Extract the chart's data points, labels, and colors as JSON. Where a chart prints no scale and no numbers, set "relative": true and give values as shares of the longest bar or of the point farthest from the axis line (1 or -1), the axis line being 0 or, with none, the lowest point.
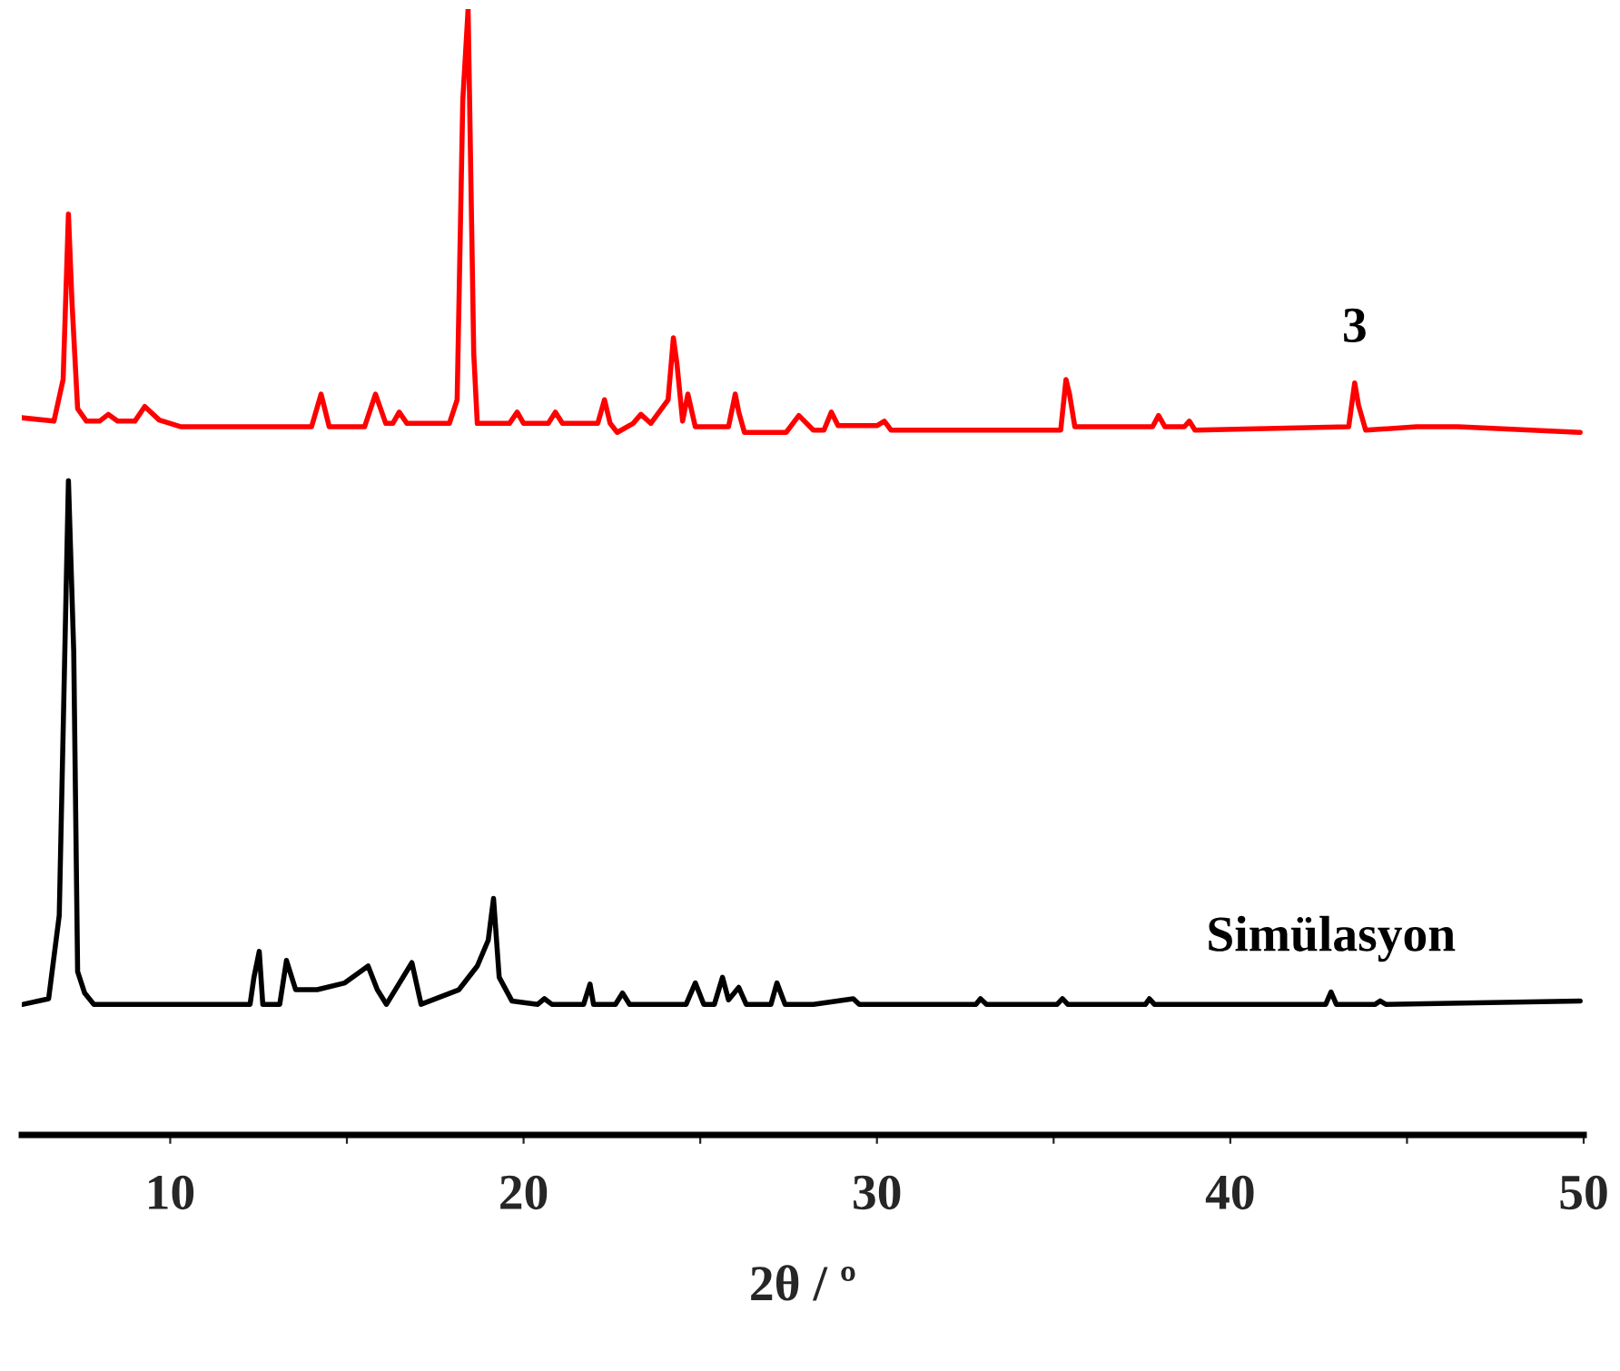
{
  "chart_data": {
    "type": "line",
    "relative": true,
    "xlabel": "2θ / º",
    "xlim": [
      5.8,
      50
    ],
    "xticks": [
      10,
      {
        "value": 15,
        "label": null
      },
      20,
      {
        "value": 25,
        "label": null
      },
      30,
      {
        "value": 35,
        "label": null
      },
      40,
      {
        "value": 45,
        "label": null
      },
      50
    ],
    "tick_labels": "x",
    "grid": false,
    "legend": false,
    "marker": "none",
    "line_style": "solid",
    "series": [
      {
        "name": "3",
        "color": "#ff0000",
        "x": [
          5.8,
          6.71,
          6.97,
          7.12,
          7.22,
          7.38,
          7.63,
          8.0,
          8.25,
          8.51,
          9.0,
          9.28,
          9.69,
          10.31,
          14.0,
          14.27,
          14.5,
          15.5,
          15.81,
          16.1,
          16.3,
          16.48,
          16.7,
          17.9,
          18.12,
          18.28,
          18.43,
          18.59,
          18.69,
          19.6,
          19.82,
          20.0,
          20.7,
          20.9,
          21.1,
          22.1,
          22.29,
          22.45,
          22.65,
          23.1,
          23.32,
          23.6,
          24.09,
          24.24,
          24.34,
          24.5,
          24.65,
          24.86,
          25.8,
          25.99,
          26.09,
          26.25,
          27.43,
          27.79,
          28.2,
          28.5,
          28.71,
          28.9,
          30.0,
          30.21,
          30.4,
          35.2,
          35.35,
          35.45,
          35.6,
          37.8,
          37.97,
          38.15,
          38.7,
          38.84,
          39.0,
          43.35,
          43.52,
          43.63,
          43.83,
          45.27,
          46.45,
          49.9
        ],
        "values": [
          0.637,
          0.634,
          0.671,
          0.818,
          0.74,
          0.645,
          0.634,
          0.634,
          0.64,
          0.634,
          0.634,
          0.647,
          0.635,
          0.629,
          0.629,
          0.658,
          0.629,
          0.629,
          0.658,
          0.632,
          0.632,
          0.642,
          0.632,
          0.632,
          0.653,
          0.919,
          1.0,
          0.694,
          0.632,
          0.632,
          0.642,
          0.632,
          0.632,
          0.642,
          0.632,
          0.632,
          0.653,
          0.632,
          0.624,
          0.632,
          0.64,
          0.632,
          0.653,
          0.708,
          0.685,
          0.634,
          0.658,
          0.629,
          0.629,
          0.658,
          0.642,
          0.624,
          0.624,
          0.639,
          0.626,
          0.626,
          0.642,
          0.63,
          0.63,
          0.634,
          0.626,
          0.626,
          0.671,
          0.658,
          0.629,
          0.629,
          0.639,
          0.629,
          0.629,
          0.634,
          0.626,
          0.629,
          0.668,
          0.648,
          0.626,
          0.629,
          0.629,
          0.624
        ]
      },
      {
        "name": "Simülasyon",
        "color": "#000000",
        "x": [
          5.84,
          6.56,
          6.86,
          7.12,
          7.27,
          7.38,
          7.58,
          7.84,
          12.26,
          12.37,
          12.52,
          12.62,
          13.1,
          13.29,
          13.55,
          14.16,
          14.94,
          15.6,
          15.86,
          16.12,
          16.84,
          17.1,
          18.17,
          18.69,
          19.0,
          19.15,
          19.31,
          19.67,
          20.4,
          20.59,
          20.8,
          21.7,
          21.88,
          21.98,
          22.6,
          22.8,
          23.0,
          24.6,
          24.86,
          25.1,
          25.4,
          25.63,
          25.8,
          26.09,
          26.3,
          27.0,
          27.17,
          27.4,
          28.2,
          29.33,
          29.5,
          32.8,
          32.93,
          33.1,
          35.1,
          35.25,
          35.4,
          37.6,
          37.71,
          37.85,
          42.7,
          42.85,
          43.0,
          44.1,
          44.24,
          44.4,
          49.9
        ],
        "values": [
          0.116,
          0.121,
          0.195,
          0.581,
          0.429,
          0.145,
          0.126,
          0.116,
          0.116,
          0.14,
          0.163,
          0.116,
          0.116,
          0.155,
          0.129,
          0.129,
          0.135,
          0.15,
          0.129,
          0.116,
          0.153,
          0.116,
          0.129,
          0.15,
          0.173,
          0.21,
          0.14,
          0.119,
          0.116,
          0.121,
          0.116,
          0.116,
          0.134,
          0.116,
          0.116,
          0.126,
          0.116,
          0.116,
          0.135,
          0.116,
          0.116,
          0.14,
          0.12,
          0.131,
          0.116,
          0.116,
          0.135,
          0.116,
          0.116,
          0.121,
          0.116,
          0.116,
          0.121,
          0.116,
          0.116,
          0.121,
          0.116,
          0.116,
          0.121,
          0.116,
          0.116,
          0.127,
          0.116,
          0.116,
          0.119,
          0.116,
          0.119
        ]
      }
    ]
  }
}
